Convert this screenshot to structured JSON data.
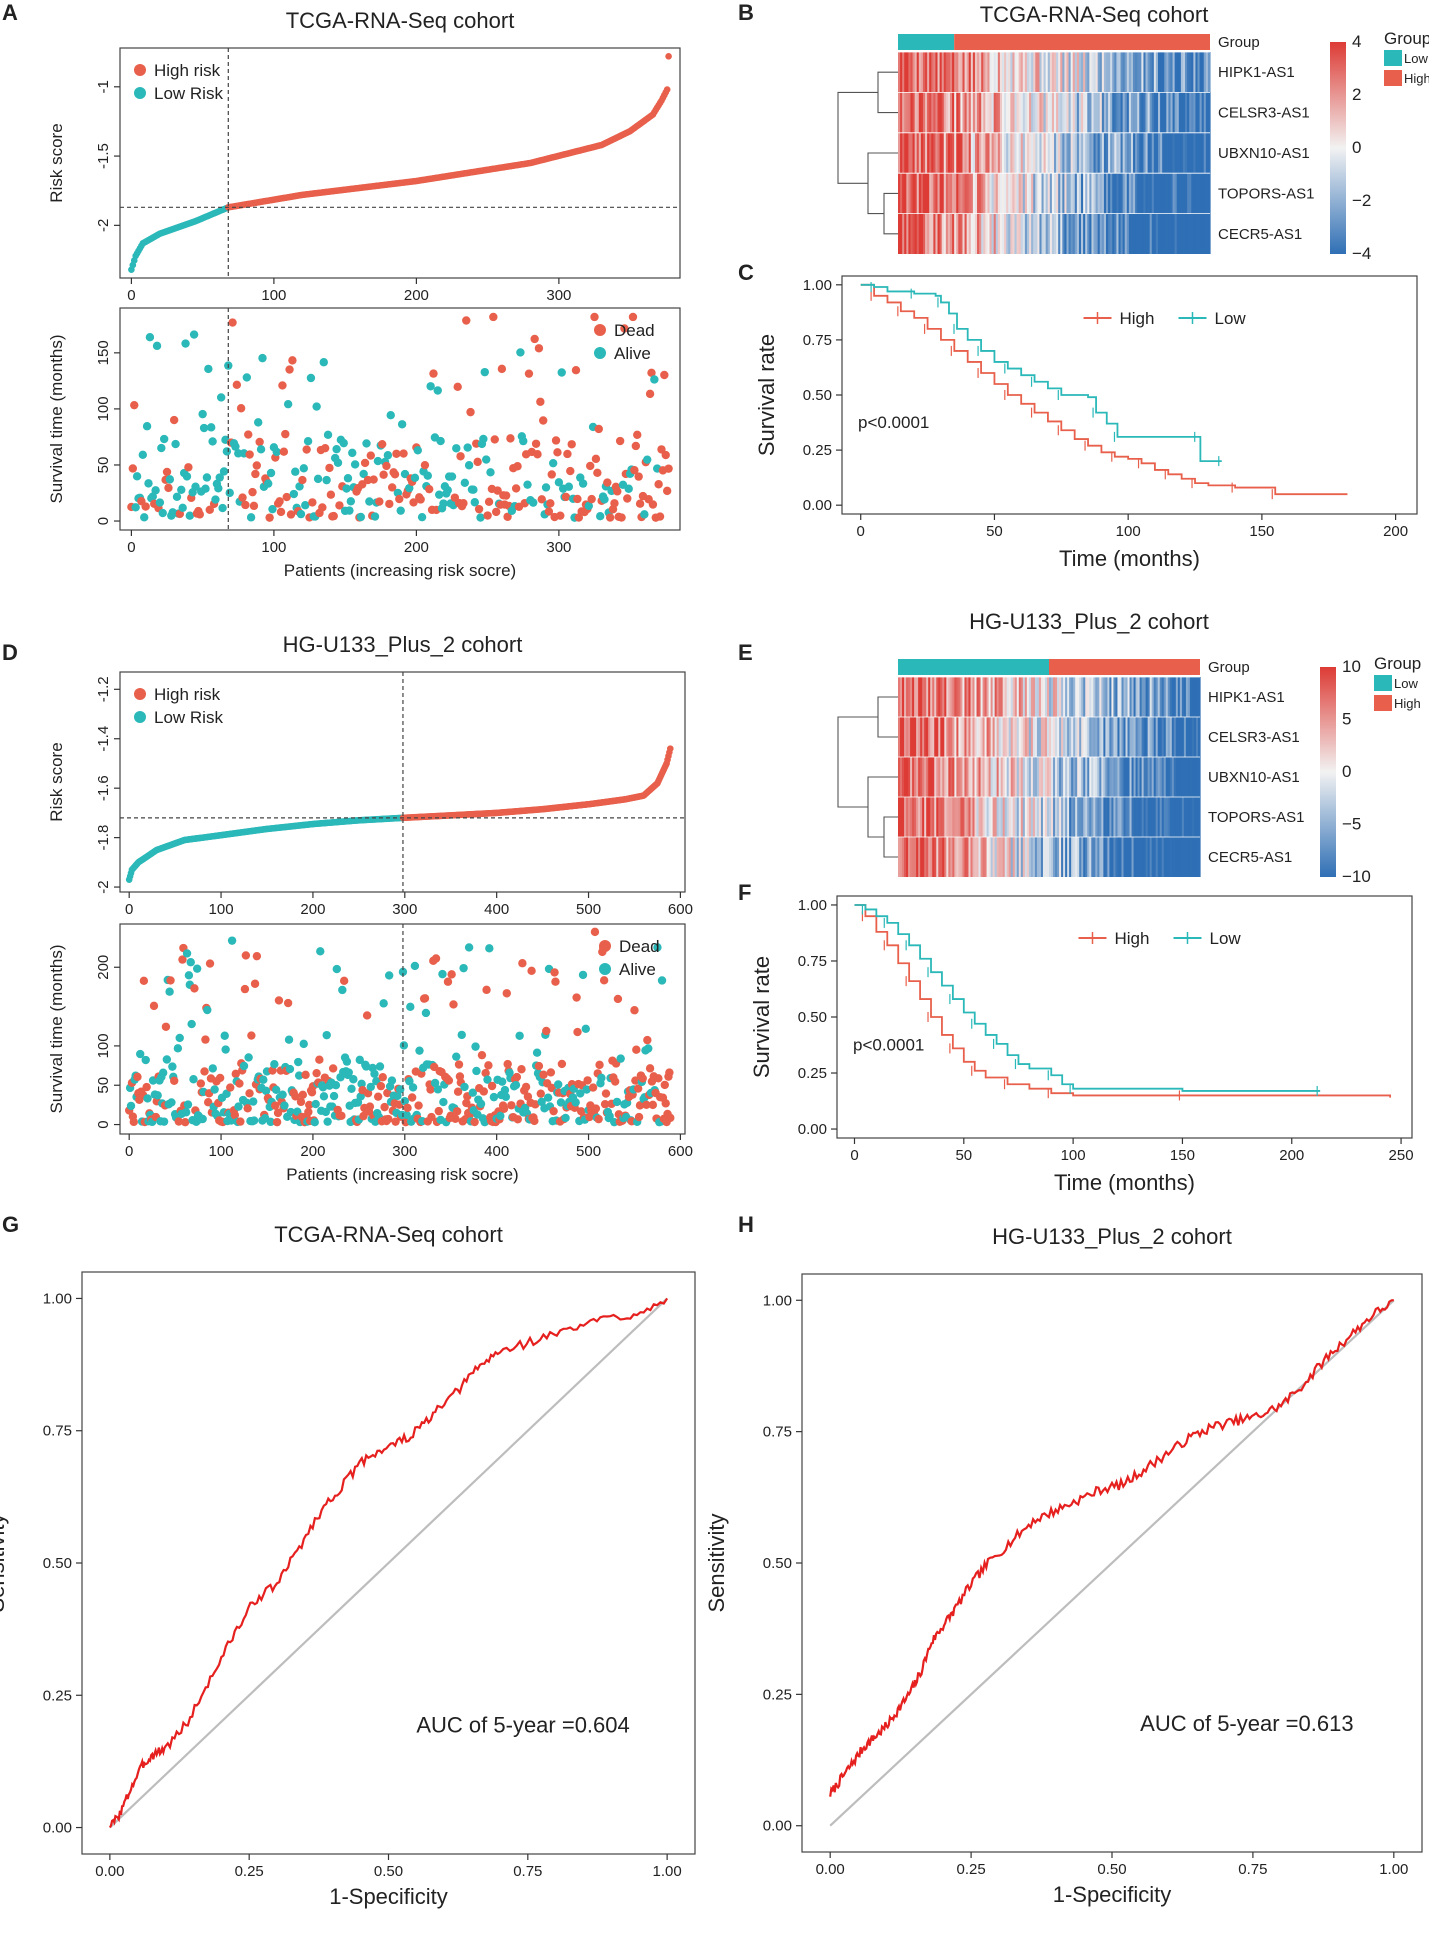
{
  "colors": {
    "high": "#E8604C",
    "low": "#2BB8B8",
    "roc": "#E5201E",
    "diag": "#BDBDBD",
    "heat_low": "#2F6FB5",
    "heat_mid": "#F2F2F2",
    "heat_high": "#DD3B35"
  },
  "panel_letters": [
    "A",
    "B",
    "C",
    "D",
    "E",
    "F",
    "G",
    "H"
  ],
  "chart_data": [
    {
      "id": "A_risk",
      "type": "scatter",
      "letter": "A",
      "title": "TCGA-RNA-Seq cohort",
      "xlabel": "",
      "ylabel": "Risk score",
      "xticks": [
        0,
        100,
        200,
        300
      ],
      "yticks": [
        -2.0,
        -1.5,
        -1.0
      ],
      "xlim": [
        -8,
        385
      ],
      "ylim": [
        -2.38,
        -0.72
      ],
      "n": 378,
      "cutoff_index": 68,
      "cutoff_value": -1.87,
      "curve_anchors": [
        [
          0,
          -2.32
        ],
        [
          3,
          -2.22
        ],
        [
          8,
          -2.13
        ],
        [
          20,
          -2.06
        ],
        [
          45,
          -1.97
        ],
        [
          68,
          -1.87
        ],
        [
          120,
          -1.78
        ],
        [
          200,
          -1.68
        ],
        [
          280,
          -1.55
        ],
        [
          330,
          -1.42
        ],
        [
          350,
          -1.32
        ],
        [
          366,
          -1.2
        ],
        [
          372,
          -1.1
        ],
        [
          376,
          -1.02
        ],
        [
          377,
          -0.78
        ]
      ],
      "legend": [
        "High risk",
        "Low Risk"
      ]
    },
    {
      "id": "A_surv",
      "type": "scatter",
      "xlabel": "Patients (increasing risk socre)",
      "ylabel": "Survival time (months)",
      "xticks": [
        0,
        100,
        200,
        300
      ],
      "yticks": [
        0,
        50,
        100,
        150
      ],
      "xlim": [
        -8,
        385
      ],
      "ylim": [
        -8,
        190
      ],
      "n": 378,
      "cutoff_index": 68,
      "max_y": 182,
      "seed": 11,
      "legend": [
        "Dead",
        "Alive"
      ]
    },
    {
      "id": "B_heat",
      "type": "heatmap",
      "letter": "B",
      "title": "TCGA-RNA-Seq cohort",
      "rows": [
        "HIPK1-AS1",
        "CELSR3-AS1",
        "UBXN10-AS1",
        "TOPORS-AS1",
        "CECR5-AS1"
      ],
      "group_label": "Group",
      "group_split": 0.18,
      "scale_ticks": [
        "4",
        "2",
        "0",
        "−2",
        "−4"
      ],
      "legend_title": "Group",
      "legend": [
        "Low",
        "High"
      ],
      "seed": 5
    },
    {
      "id": "C_km",
      "type": "line",
      "letter": "C",
      "xlabel": "Time (months)",
      "ylabel": "Survival rate",
      "xticks": [
        0,
        50,
        100,
        150,
        200
      ],
      "yticks": [
        "0.00",
        "0.25",
        "0.50",
        "0.75",
        "1.00"
      ],
      "xlim": [
        -7,
        208
      ],
      "ylim": [
        -0.04,
        1.04
      ],
      "pvalue": "p<0.0001",
      "series": [
        {
          "name": "High",
          "points": [
            [
              0,
              1.0
            ],
            [
              5,
              0.95
            ],
            [
              10,
              0.92
            ],
            [
              15,
              0.88
            ],
            [
              20,
              0.85
            ],
            [
              25,
              0.8
            ],
            [
              30,
              0.75
            ],
            [
              35,
              0.7
            ],
            [
              40,
              0.65
            ],
            [
              45,
              0.6
            ],
            [
              50,
              0.55
            ],
            [
              55,
              0.5
            ],
            [
              60,
              0.46
            ],
            [
              65,
              0.42
            ],
            [
              70,
              0.38
            ],
            [
              75,
              0.34
            ],
            [
              80,
              0.3
            ],
            [
              85,
              0.27
            ],
            [
              90,
              0.24
            ],
            [
              95,
              0.22
            ],
            [
              100,
              0.21
            ],
            [
              105,
              0.19
            ],
            [
              110,
              0.16
            ],
            [
              115,
              0.14
            ],
            [
              120,
              0.12
            ],
            [
              125,
              0.1
            ],
            [
              130,
              0.09
            ],
            [
              140,
              0.08
            ],
            [
              150,
              0.08
            ],
            [
              155,
              0.05
            ],
            [
              182,
              0.05
            ]
          ]
        },
        {
          "name": "Low",
          "points": [
            [
              0,
              1.0
            ],
            [
              5,
              0.99
            ],
            [
              10,
              0.97
            ],
            [
              20,
              0.96
            ],
            [
              28,
              0.95
            ],
            [
              30,
              0.92
            ],
            [
              33,
              0.87
            ],
            [
              36,
              0.8
            ],
            [
              40,
              0.75
            ],
            [
              45,
              0.7
            ],
            [
              50,
              0.65
            ],
            [
              55,
              0.62
            ],
            [
              60,
              0.59
            ],
            [
              65,
              0.56
            ],
            [
              70,
              0.53
            ],
            [
              75,
              0.5
            ],
            [
              85,
              0.49
            ],
            [
              88,
              0.42
            ],
            [
              92,
              0.37
            ],
            [
              96,
              0.31
            ],
            [
              110,
              0.31
            ],
            [
              126,
              0.31
            ],
            [
              127,
              0.2
            ],
            [
              135,
              0.2
            ]
          ]
        }
      ]
    },
    {
      "id": "D_risk",
      "type": "scatter",
      "letter": "D",
      "title": "HG-U133_Plus_2 cohort",
      "xlabel": "",
      "ylabel": "Risk score",
      "xticks": [
        0,
        100,
        200,
        300,
        400,
        500,
        600
      ],
      "yticks": [
        -2.0,
        -1.8,
        -1.6,
        -1.4,
        -1.2
      ],
      "xlim": [
        -10,
        605
      ],
      "ylim": [
        -2.02,
        -1.13
      ],
      "n": 590,
      "cutoff_index": 298,
      "cutoff_value": -1.72,
      "curve_anchors": [
        [
          0,
          -1.97
        ],
        [
          3,
          -1.93
        ],
        [
          10,
          -1.9
        ],
        [
          30,
          -1.85
        ],
        [
          60,
          -1.81
        ],
        [
          100,
          -1.79
        ],
        [
          150,
          -1.765
        ],
        [
          200,
          -1.745
        ],
        [
          250,
          -1.73
        ],
        [
          298,
          -1.72
        ],
        [
          350,
          -1.71
        ],
        [
          400,
          -1.7
        ],
        [
          450,
          -1.685
        ],
        [
          500,
          -1.665
        ],
        [
          540,
          -1.645
        ],
        [
          560,
          -1.63
        ],
        [
          575,
          -1.58
        ],
        [
          585,
          -1.5
        ],
        [
          589,
          -1.44
        ],
        [
          590,
          -1.16
        ]
      ],
      "legend": [
        "High risk",
        "Low Risk"
      ]
    },
    {
      "id": "D_surv",
      "type": "scatter",
      "xlabel": "Patients (increasing risk socre)",
      "ylabel": "Survival time (months)",
      "xticks": [
        0,
        100,
        200,
        300,
        400,
        500,
        600
      ],
      "yticks": [
        0,
        50,
        100,
        200
      ],
      "xlim": [
        -10,
        605
      ],
      "ylim": [
        -12,
        255
      ],
      "n": 590,
      "cutoff_index": 298,
      "max_y": 245,
      "seed": 23,
      "legend": [
        "Dead",
        "Alive"
      ]
    },
    {
      "id": "E_heat",
      "type": "heatmap",
      "letter": "E",
      "title": "HG-U133_Plus_2 cohort",
      "rows": [
        "HIPK1-AS1",
        "CELSR3-AS1",
        "UBXN10-AS1",
        "TOPORS-AS1",
        "CECR5-AS1"
      ],
      "group_label": "Group",
      "group_split": 0.5,
      "scale_ticks": [
        "10",
        "5",
        "0",
        "−5",
        "−10"
      ],
      "legend_title": "Group",
      "legend": [
        "Low",
        "High"
      ],
      "seed": 9
    },
    {
      "id": "F_km",
      "type": "line",
      "letter": "F",
      "xlabel": "Time (months)",
      "ylabel": "Survival rate",
      "xticks": [
        0,
        50,
        100,
        150,
        200,
        250
      ],
      "yticks": [
        "0.00",
        "0.25",
        "0.50",
        "0.75",
        "1.00"
      ],
      "xlim": [
        -8,
        255
      ],
      "ylim": [
        -0.04,
        1.04
      ],
      "pvalue": "p<0.0001",
      "series": [
        {
          "name": "High",
          "points": [
            [
              0,
              1.0
            ],
            [
              5,
              0.95
            ],
            [
              10,
              0.88
            ],
            [
              15,
              0.82
            ],
            [
              20,
              0.74
            ],
            [
              25,
              0.66
            ],
            [
              30,
              0.58
            ],
            [
              35,
              0.5
            ],
            [
              40,
              0.42
            ],
            [
              45,
              0.36
            ],
            [
              50,
              0.3
            ],
            [
              55,
              0.26
            ],
            [
              60,
              0.23
            ],
            [
              70,
              0.2
            ],
            [
              80,
              0.18
            ],
            [
              90,
              0.16
            ],
            [
              100,
              0.15
            ],
            [
              150,
              0.15
            ],
            [
              245,
              0.14
            ]
          ]
        },
        {
          "name": "Low",
          "points": [
            [
              0,
              1.0
            ],
            [
              5,
              0.98
            ],
            [
              10,
              0.95
            ],
            [
              15,
              0.92
            ],
            [
              20,
              0.87
            ],
            [
              25,
              0.82
            ],
            [
              30,
              0.76
            ],
            [
              35,
              0.7
            ],
            [
              40,
              0.64
            ],
            [
              45,
              0.58
            ],
            [
              50,
              0.52
            ],
            [
              55,
              0.47
            ],
            [
              60,
              0.42
            ],
            [
              65,
              0.38
            ],
            [
              70,
              0.33
            ],
            [
              75,
              0.29
            ],
            [
              80,
              0.27
            ],
            [
              90,
              0.24
            ],
            [
              95,
              0.2
            ],
            [
              100,
              0.18
            ],
            [
              150,
              0.17
            ],
            [
              213,
              0.17
            ]
          ]
        }
      ]
    },
    {
      "id": "G_roc",
      "type": "line",
      "letter": "G",
      "title": "TCGA-RNA-Seq cohort",
      "xlabel": "1-Specificity",
      "ylabel": "Sensitivity",
      "xticks": [
        "0.00",
        "0.25",
        "0.50",
        "0.75",
        "1.00"
      ],
      "yticks": [
        "0.00",
        "0.25",
        "0.50",
        "0.75",
        "1.00"
      ],
      "xlim": [
        -0.05,
        1.05
      ],
      "ylim": [
        -0.05,
        1.05
      ],
      "annotation": "AUC of 5-year =0.604",
      "seed": 3,
      "points": [
        [
          0,
          0.0
        ],
        [
          0.02,
          0.03
        ],
        [
          0.04,
          0.08
        ],
        [
          0.06,
          0.12
        ],
        [
          0.08,
          0.14
        ],
        [
          0.1,
          0.15
        ],
        [
          0.14,
          0.2
        ],
        [
          0.18,
          0.28
        ],
        [
          0.22,
          0.36
        ],
        [
          0.26,
          0.43
        ],
        [
          0.3,
          0.46
        ],
        [
          0.34,
          0.53
        ],
        [
          0.38,
          0.6
        ],
        [
          0.42,
          0.65
        ],
        [
          0.46,
          0.7
        ],
        [
          0.5,
          0.72
        ],
        [
          0.54,
          0.74
        ],
        [
          0.58,
          0.78
        ],
        [
          0.62,
          0.82
        ],
        [
          0.66,
          0.87
        ],
        [
          0.7,
          0.9
        ],
        [
          0.76,
          0.92
        ],
        [
          0.82,
          0.94
        ],
        [
          0.88,
          0.96
        ],
        [
          0.94,
          0.97
        ],
        [
          1.0,
          1.0
        ]
      ]
    },
    {
      "id": "H_roc",
      "type": "line",
      "letter": "H",
      "title": "HG-U133_Plus_2 cohort",
      "xlabel": "1-Specificity",
      "ylabel": "Sensitivity",
      "xticks": [
        "0.00",
        "0.25",
        "0.50",
        "0.75",
        "1.00"
      ],
      "yticks": [
        "0.00",
        "0.25",
        "0.50",
        "0.75",
        "1.00"
      ],
      "xlim": [
        -0.05,
        1.05
      ],
      "ylim": [
        -0.05,
        1.05
      ],
      "annotation": "AUC of 5-year =0.613",
      "seed": 7,
      "points": [
        [
          0,
          0.06
        ],
        [
          0.02,
          0.09
        ],
        [
          0.04,
          0.12
        ],
        [
          0.06,
          0.15
        ],
        [
          0.08,
          0.17
        ],
        [
          0.1,
          0.19
        ],
        [
          0.12,
          0.22
        ],
        [
          0.14,
          0.25
        ],
        [
          0.16,
          0.29
        ],
        [
          0.18,
          0.35
        ],
        [
          0.2,
          0.38
        ],
        [
          0.22,
          0.41
        ],
        [
          0.25,
          0.46
        ],
        [
          0.28,
          0.5
        ],
        [
          0.32,
          0.54
        ],
        [
          0.36,
          0.58
        ],
        [
          0.4,
          0.6
        ],
        [
          0.44,
          0.62
        ],
        [
          0.48,
          0.64
        ],
        [
          0.52,
          0.65
        ],
        [
          0.56,
          0.68
        ],
        [
          0.6,
          0.71
        ],
        [
          0.64,
          0.74
        ],
        [
          0.68,
          0.76
        ],
        [
          0.72,
          0.77
        ],
        [
          0.76,
          0.78
        ],
        [
          0.8,
          0.8
        ],
        [
          0.84,
          0.84
        ],
        [
          0.88,
          0.89
        ],
        [
          0.92,
          0.93
        ],
        [
          0.96,
          0.97
        ],
        [
          1.0,
          1.0
        ]
      ]
    }
  ]
}
